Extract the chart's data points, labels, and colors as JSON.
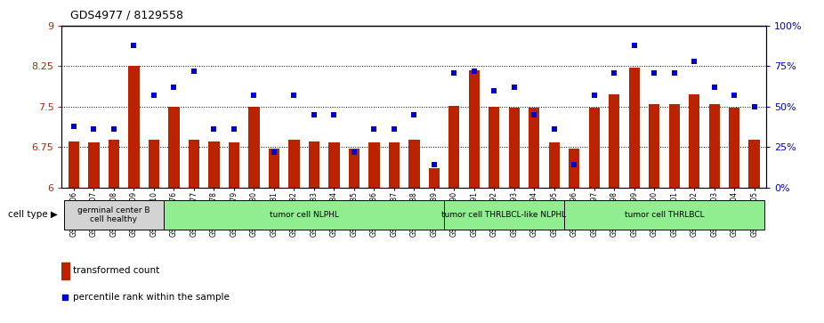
{
  "title": "GDS4977 / 8129558",
  "samples": [
    "GSM1143706",
    "GSM1143707",
    "GSM1143708",
    "GSM1143709",
    "GSM1143710",
    "GSM1143676",
    "GSM1143677",
    "GSM1143678",
    "GSM1143679",
    "GSM1143680",
    "GSM1143681",
    "GSM1143682",
    "GSM1143683",
    "GSM1143684",
    "GSM1143685",
    "GSM1143686",
    "GSM1143687",
    "GSM1143688",
    "GSM1143689",
    "GSM1143690",
    "GSM1143691",
    "GSM1143692",
    "GSM1143693",
    "GSM1143694",
    "GSM1143695",
    "GSM1143696",
    "GSM1143697",
    "GSM1143698",
    "GSM1143699",
    "GSM1143700",
    "GSM1143701",
    "GSM1143702",
    "GSM1143703",
    "GSM1143704",
    "GSM1143705"
  ],
  "bar_values": [
    6.85,
    6.83,
    6.88,
    8.26,
    6.88,
    7.5,
    6.88,
    6.85,
    6.83,
    7.5,
    6.72,
    6.88,
    6.85,
    6.83,
    6.72,
    6.83,
    6.83,
    6.88,
    6.35,
    7.52,
    8.18,
    7.5,
    7.48,
    7.48,
    6.83,
    6.72,
    7.48,
    7.72,
    8.22,
    7.55,
    7.55,
    7.72,
    7.55,
    7.48,
    6.88
  ],
  "dot_values": [
    38,
    36,
    36,
    88,
    57,
    62,
    72,
    36,
    36,
    57,
    22,
    57,
    45,
    45,
    22,
    36,
    36,
    45,
    14,
    71,
    72,
    60,
    62,
    45,
    36,
    14,
    57,
    71,
    88,
    71,
    71,
    78,
    62,
    57,
    50
  ],
  "bar_color": "#bb2200",
  "dot_color": "#0000cc",
  "ylim_left": [
    6,
    9
  ],
  "ylim_right": [
    0,
    100
  ],
  "yticks_left": [
    6,
    6.75,
    7.5,
    8.25,
    9
  ],
  "ytick_labels_left": [
    "6",
    "6.75",
    "7.5",
    "8.25",
    "9"
  ],
  "yticks_right": [
    0,
    25,
    50,
    75,
    100
  ],
  "ytick_labels_right": [
    "0%",
    "25%",
    "50%",
    "75%",
    "100%"
  ],
  "hlines": [
    6.75,
    7.5,
    8.25
  ],
  "cell_groups": [
    {
      "label": "germinal center B\ncell healthy",
      "start": 0,
      "end": 5,
      "color": "#d3d3d3"
    },
    {
      "label": "tumor cell NLPHL",
      "start": 5,
      "end": 19,
      "color": "#90ee90"
    },
    {
      "label": "tumor cell THRLBCL-like NLPHL",
      "start": 19,
      "end": 25,
      "color": "#90ee90"
    },
    {
      "label": "tumor cell THRLBCL",
      "start": 25,
      "end": 35,
      "color": "#90ee90"
    }
  ],
  "legend_bar_label": "transformed count",
  "legend_dot_label": "percentile rank within the sample",
  "cell_type_label": "cell type"
}
